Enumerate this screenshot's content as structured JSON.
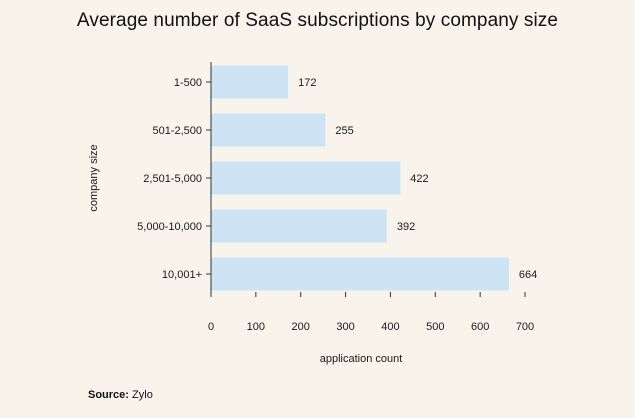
{
  "chart_data": {
    "type": "bar",
    "orientation": "horizontal",
    "title": "Average number of SaaS subscriptions by company size",
    "categories": [
      "1-500",
      "501-2,500",
      "2,501-5,000",
      "5,000-10,000",
      "10,001+"
    ],
    "values": [
      172,
      255,
      422,
      392,
      664
    ],
    "xlabel": "application count",
    "ylabel": "company size",
    "xlim": [
      0,
      700
    ],
    "xticks": [
      0,
      100,
      200,
      300,
      400,
      500,
      600,
      700
    ],
    "bar_color": "#cce4f3",
    "grid": false
  },
  "source": {
    "label": "Source:",
    "value": "Zylo"
  }
}
